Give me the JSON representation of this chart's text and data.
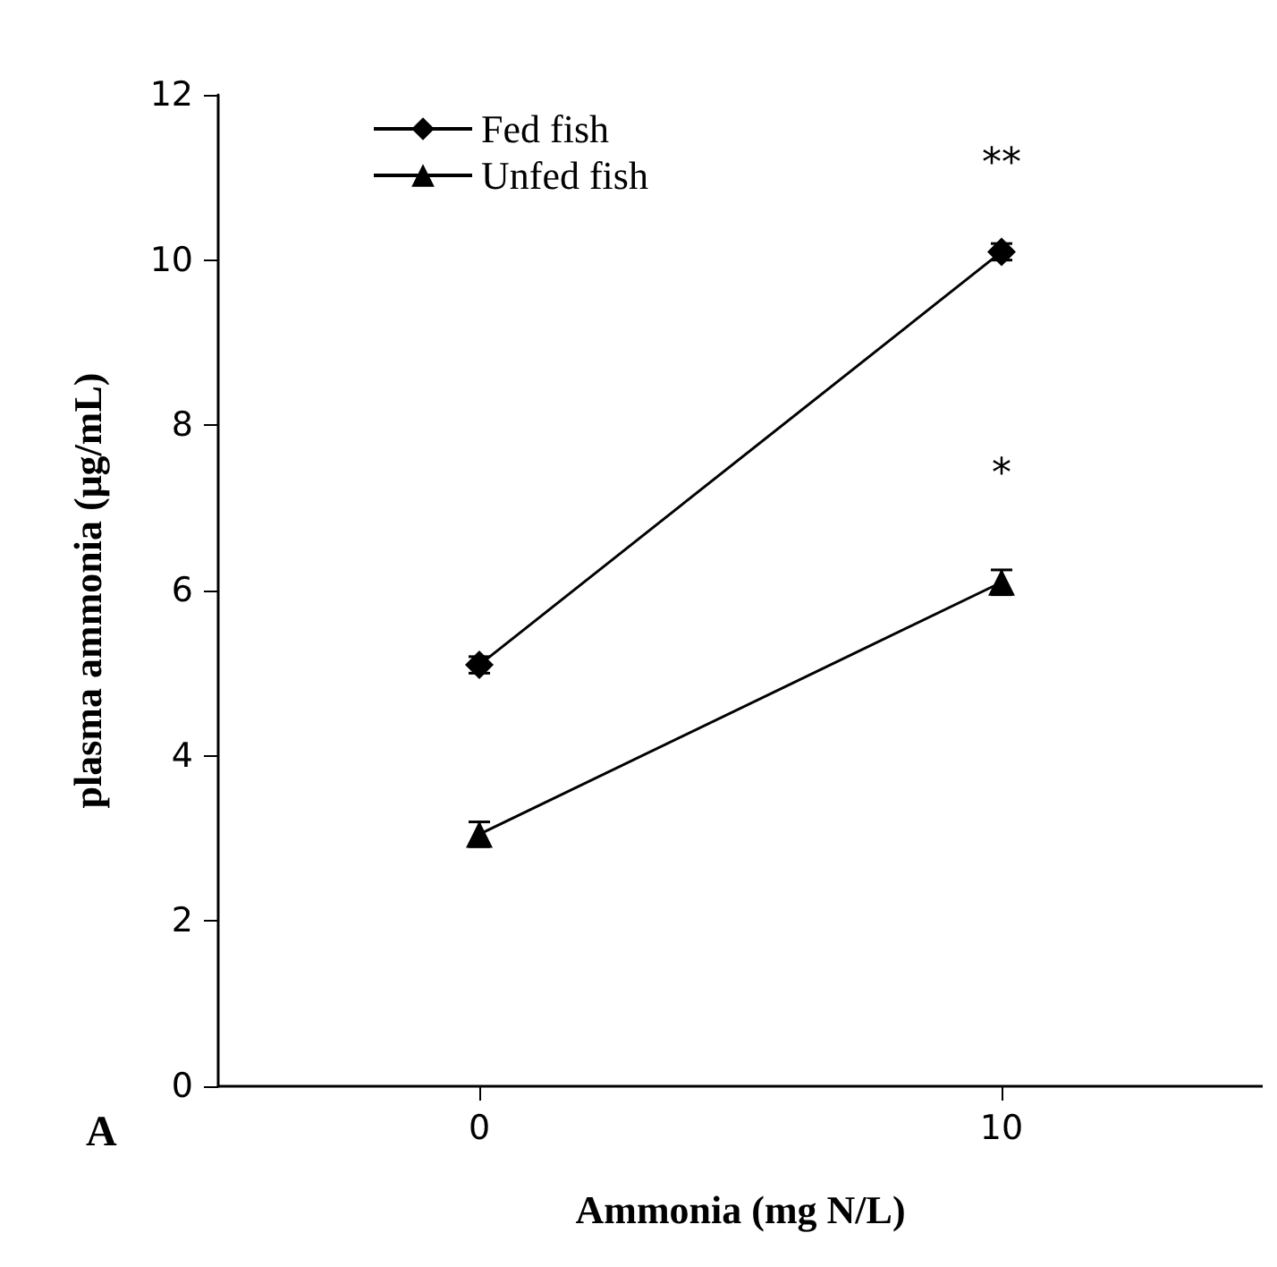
{
  "chart_data": {
    "type": "line",
    "xlabel": "Ammonia (mg N/L)",
    "ylabel": "plasma ammonia (μg/mL)",
    "x": [
      0,
      10
    ],
    "series": [
      {
        "name": "Fed fish",
        "color": "#000000",
        "marker": "diamond",
        "values": [
          5.1,
          10.1
        ],
        "errors": [
          0.1,
          0.1
        ],
        "value_labels": [
          null,
          "**"
        ]
      },
      {
        "name": "Unfed fish",
        "color": "#000000",
        "marker": "triangle",
        "values": [
          3.05,
          6.1
        ],
        "errors": [
          0.15,
          0.15
        ],
        "value_labels": [
          null,
          "*"
        ]
      }
    ],
    "xlim": [
      -5,
      15
    ],
    "xticks": [
      0,
      10
    ],
    "ylim": [
      0,
      12
    ],
    "yticks": [
      0,
      2,
      4,
      6,
      8,
      10,
      12
    ],
    "grid": false,
    "legend": "top left",
    "line_style": "solid",
    "annotations": [
      "A"
    ]
  }
}
